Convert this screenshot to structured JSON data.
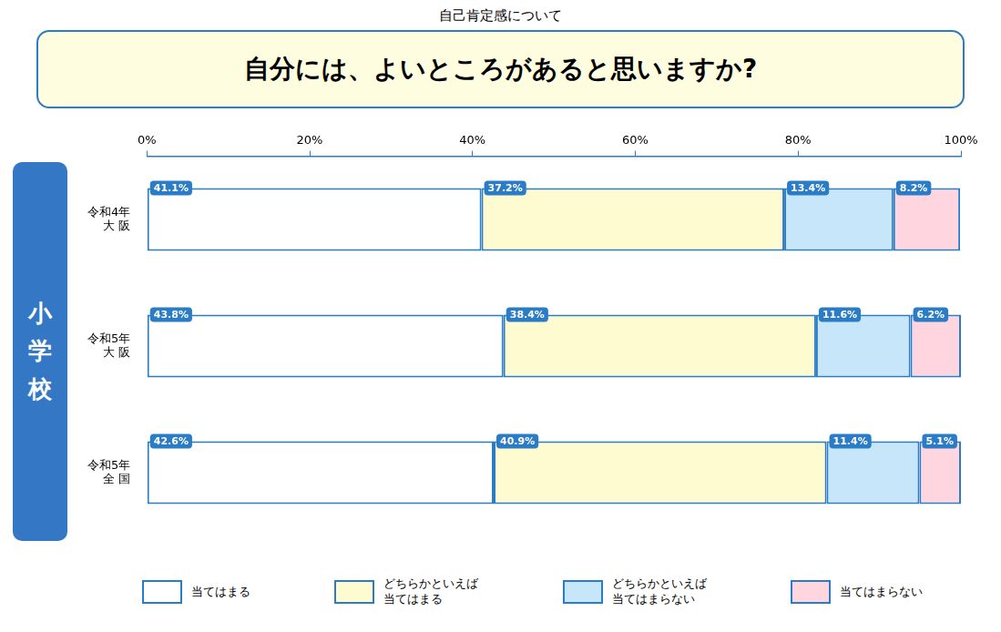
{
  "chart_data": {
    "type": "bar",
    "orientation": "horizontal",
    "stacked": true,
    "title": "自分には、よいところがあると思いますか?",
    "subtitle": "自己肯定感について",
    "annotations": [
      "小\n学\n校"
    ],
    "categories": [
      "令和4年\n大 阪",
      "令和5年\n大 阪",
      "令和5年\n全 国"
    ],
    "series": [
      {
        "name": "当てはまる",
        "color": "#FFFFFF",
        "values": [
          41.1,
          43.8,
          42.6
        ],
        "value_labels": [
          "41.1%",
          "43.8%",
          "42.6%"
        ]
      },
      {
        "name": "どちらかといえば\n当てはまる",
        "color": "#FEFBD0",
        "values": [
          37.2,
          38.4,
          40.9
        ],
        "value_labels": [
          "37.2%",
          "38.4%",
          "40.9%"
        ]
      },
      {
        "name": "どちらかといえば\n当てはまらない",
        "color": "#C8E6FA",
        "values": [
          13.4,
          11.6,
          11.4
        ],
        "value_labels": [
          "13.4%",
          "11.6%",
          "11.4%"
        ]
      },
      {
        "name": "当てはまらない",
        "color": "#FFD6E0",
        "values": [
          8.2,
          6.2,
          5.1
        ],
        "value_labels": [
          "8.2%",
          "6.2%",
          "5.1%"
        ]
      }
    ],
    "xlim": [
      0,
      100
    ],
    "xticks": [
      {
        "value": 0,
        "label": "0%"
      },
      {
        "value": 20,
        "label": "20%"
      },
      {
        "value": 40,
        "label": "40%"
      },
      {
        "value": 60,
        "label": "60%"
      },
      {
        "value": 80,
        "label": "80%"
      },
      {
        "value": 100,
        "label": "100%"
      }
    ],
    "grid": false,
    "legend": "bottom",
    "data_labels": true
  }
}
